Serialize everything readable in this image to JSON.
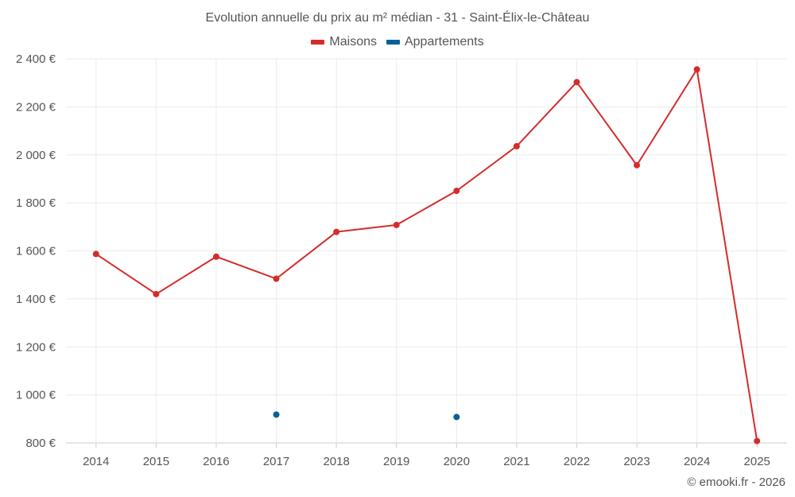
{
  "colors": {
    "maisons": "#d62b2b",
    "appartements": "#0a5f98",
    "grid": "#ebebeb",
    "axis": "#cccccc",
    "text": "#555555"
  },
  "credit": "© emooki.fr - 2026",
  "chart_data": {
    "type": "line",
    "title": "Evolution annuelle du prix au m² médian - 31 - Saint-Élix-le-Château",
    "categories": [
      "2014",
      "2015",
      "2016",
      "2017",
      "2018",
      "2019",
      "2020",
      "2021",
      "2022",
      "2023",
      "2024",
      "2025"
    ],
    "ylim": [
      800,
      2400
    ],
    "yticks": [
      800,
      1000,
      1200,
      1400,
      1600,
      1800,
      2000,
      2200,
      2400
    ],
    "ytick_labels": [
      "800 €",
      "1 000 €",
      "1 200 €",
      "1 400 €",
      "1 600 €",
      "1 800 €",
      "2 000 €",
      "2 200 €",
      "2 400 €"
    ],
    "grid": true,
    "legend_position": "top-center",
    "series": [
      {
        "name": "Maisons",
        "key": "maisons",
        "style": "line",
        "values": [
          1587,
          1420,
          1576,
          1484,
          1679,
          1708,
          1850,
          2036,
          2303,
          1957,
          2356,
          808
        ]
      },
      {
        "name": "Appartements",
        "key": "appartements",
        "style": "points",
        "values": [
          null,
          null,
          null,
          918,
          null,
          null,
          908,
          null,
          null,
          null,
          null,
          null
        ]
      }
    ]
  }
}
